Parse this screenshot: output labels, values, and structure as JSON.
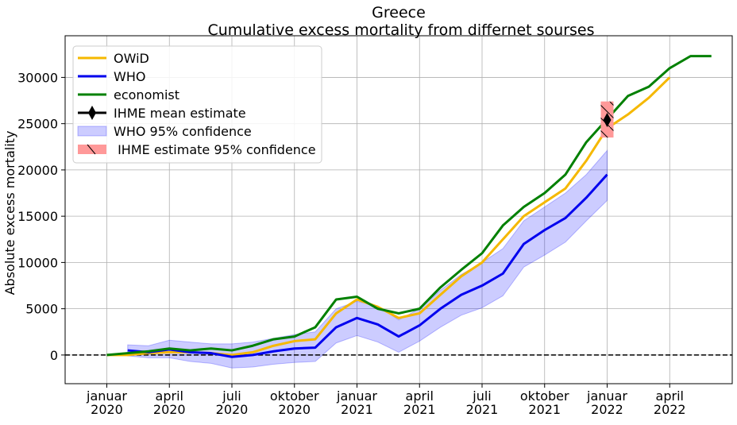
{
  "chart_data": {
    "type": "line",
    "title": "Greece",
    "subtitle": "Cumulative excess mortality from differnet sourses",
    "ylabel": "Absolute excess mortality",
    "xlim": [
      "2019-11",
      "2022-07"
    ],
    "ylim": [
      -3100,
      34500
    ],
    "yticks": [
      0,
      5000,
      10000,
      15000,
      20000,
      25000,
      30000
    ],
    "xticks": [
      {
        "value": "2020-01",
        "label": "januar\n2020"
      },
      {
        "value": "2020-04",
        "label": "april\n2020"
      },
      {
        "value": "2020-07",
        "label": "juli\n2020"
      },
      {
        "value": "2020-10",
        "label": "oktober\n2020"
      },
      {
        "value": "2021-01",
        "label": "januar\n2021"
      },
      {
        "value": "2021-04",
        "label": "april\n2021"
      },
      {
        "value": "2021-07",
        "label": "juli\n2021"
      },
      {
        "value": "2021-10",
        "label": "oktober\n2021"
      },
      {
        "value": "2022-01",
        "label": "januar\n2022"
      },
      {
        "value": "2022-04",
        "label": "april\n2022"
      }
    ],
    "grid": true,
    "legend": "upper left",
    "reference_line": {
      "y": 0,
      "color": "#000000",
      "dashed": true
    },
    "series": [
      {
        "name": "OWiD",
        "kind": "line",
        "color": "#f5b800",
        "x": [
          "2020-01",
          "2020-02",
          "2020-03",
          "2020-04",
          "2020-05",
          "2020-06",
          "2020-07",
          "2020-08",
          "2020-09",
          "2020-10",
          "2020-11",
          "2020-12",
          "2021-01",
          "2021-02",
          "2021-03",
          "2021-04",
          "2021-05",
          "2021-06",
          "2021-07",
          "2021-08",
          "2021-09",
          "2021-10",
          "2021-11",
          "2021-12",
          "2022-01",
          "2022-02",
          "2022-03",
          "2022-04"
        ],
        "values": [
          0,
          0,
          200,
          300,
          300,
          200,
          0,
          300,
          1000,
          1500,
          1700,
          4500,
          6000,
          5200,
          4000,
          4500,
          6500,
          8500,
          10000,
          12500,
          15000,
          16500,
          18000,
          21000,
          24500,
          26000,
          27800,
          30000
        ]
      },
      {
        "name": "WHO",
        "kind": "line",
        "color": "#0000ee",
        "x": [
          "2020-02",
          "2020-03",
          "2020-04",
          "2020-05",
          "2020-06",
          "2020-07",
          "2020-08",
          "2020-09",
          "2020-10",
          "2020-11",
          "2020-12",
          "2021-01",
          "2021-02",
          "2021-03",
          "2021-04",
          "2021-05",
          "2021-06",
          "2021-07",
          "2021-08",
          "2021-09",
          "2021-10",
          "2021-11",
          "2021-12",
          "2022-01"
        ],
        "values": [
          500,
          300,
          600,
          300,
          200,
          -200,
          0,
          400,
          700,
          800,
          3000,
          4000,
          3300,
          2000,
          3200,
          5000,
          6500,
          7500,
          8800,
          12000,
          13500,
          14800,
          17000,
          19500
        ]
      },
      {
        "name": "economist",
        "kind": "line",
        "color": "#008000",
        "x": [
          "2020-01",
          "2020-02",
          "2020-03",
          "2020-04",
          "2020-05",
          "2020-06",
          "2020-07",
          "2020-08",
          "2020-09",
          "2020-10",
          "2020-11",
          "2020-12",
          "2021-01",
          "2021-02",
          "2021-03",
          "2021-04",
          "2021-05",
          "2021-06",
          "2021-07",
          "2021-08",
          "2021-09",
          "2021-10",
          "2021-11",
          "2021-12",
          "2022-01",
          "2022-02",
          "2022-03",
          "2022-04",
          "2022-05",
          "2022-06"
        ],
        "values": [
          0,
          200,
          400,
          700,
          500,
          700,
          500,
          1000,
          1700,
          2000,
          3000,
          6000,
          6300,
          5000,
          4500,
          5000,
          7300,
          9200,
          11000,
          14000,
          16000,
          17500,
          19500,
          23000,
          25500,
          28000,
          29000,
          31000,
          32300,
          32300
        ]
      },
      {
        "name": "IHME mean estimate",
        "kind": "marker",
        "color": "#000000",
        "x": [
          "2022-01"
        ],
        "values": [
          25400
        ]
      },
      {
        "name": "WHO 95% confidence",
        "kind": "band",
        "color": "#0000ff",
        "x": [
          "2020-02",
          "2020-03",
          "2020-04",
          "2020-05",
          "2020-06",
          "2020-07",
          "2020-08",
          "2020-09",
          "2020-10",
          "2020-11",
          "2020-12",
          "2021-01",
          "2021-02",
          "2021-03",
          "2021-04",
          "2021-05",
          "2021-06",
          "2021-07",
          "2021-08",
          "2021-09",
          "2021-10",
          "2021-11",
          "2021-12",
          "2022-01"
        ],
        "lower": [
          -100,
          -300,
          -300,
          -700,
          -900,
          -1400,
          -1300,
          -1000,
          -800,
          -700,
          1300,
          2100,
          1400,
          300,
          1500,
          3000,
          4300,
          5100,
          6400,
          9500,
          10800,
          12200,
          14500,
          16700
        ],
        "upper": [
          1100,
          1000,
          1600,
          1400,
          1200,
          1200,
          1400,
          1800,
          2200,
          2500,
          5000,
          5800,
          5300,
          3800,
          5000,
          7000,
          8700,
          10000,
          11500,
          14500,
          16000,
          17500,
          19500,
          22100
        ]
      },
      {
        "name": " IHME estimate 95% confidence",
        "kind": "interval",
        "color": "#ff9999",
        "x": [
          "2022-01"
        ],
        "lower": [
          23500
        ],
        "upper": [
          27400
        ]
      }
    ]
  }
}
